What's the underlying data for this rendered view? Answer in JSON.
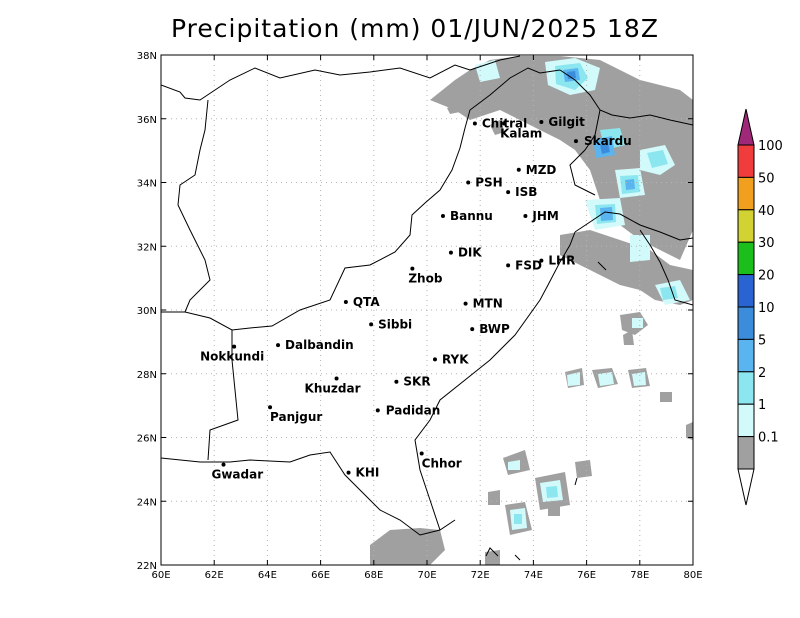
{
  "title": "Precipitation (mm) 01/JUN/2025 18Z",
  "map": {
    "lon_range": [
      60,
      80
    ],
    "lat_range": [
      22,
      38
    ],
    "grid": true,
    "x_ticks": [
      "60E",
      "62E",
      "64E",
      "66E",
      "68E",
      "70E",
      "72E",
      "74E",
      "76E",
      "78E",
      "80E"
    ],
    "y_ticks": [
      "22N",
      "24N",
      "26N",
      "28N",
      "30N",
      "32N",
      "34N",
      "36N",
      "38N"
    ]
  },
  "cities": [
    {
      "name": "Chitral",
      "lon": 71.8,
      "lat": 35.85
    },
    {
      "name": "Gilgit",
      "lon": 74.3,
      "lat": 35.9
    },
    {
      "name": "Kalam",
      "lon": 72.9,
      "lat": 35.85
    },
    {
      "name": "Skardu",
      "lon": 75.6,
      "lat": 35.3
    },
    {
      "name": "MZD",
      "lon": 73.45,
      "lat": 34.4
    },
    {
      "name": "PSH",
      "lon": 71.55,
      "lat": 34.0
    },
    {
      "name": "ISB",
      "lon": 73.05,
      "lat": 33.7
    },
    {
      "name": "JHM",
      "lon": 73.7,
      "lat": 32.95
    },
    {
      "name": "Bannu",
      "lon": 70.6,
      "lat": 32.95
    },
    {
      "name": "DIK",
      "lon": 70.9,
      "lat": 31.8
    },
    {
      "name": "FSD",
      "lon": 73.05,
      "lat": 31.4
    },
    {
      "name": "LHR",
      "lon": 74.3,
      "lat": 31.55
    },
    {
      "name": "Zhob",
      "lon": 69.45,
      "lat": 31.3
    },
    {
      "name": "QTA",
      "lon": 66.95,
      "lat": 30.25
    },
    {
      "name": "MTN",
      "lon": 71.45,
      "lat": 30.2
    },
    {
      "name": "Sibbi",
      "lon": 67.9,
      "lat": 29.55
    },
    {
      "name": "BWP",
      "lon": 71.7,
      "lat": 29.4
    },
    {
      "name": "Dalbandin",
      "lon": 64.4,
      "lat": 28.9
    },
    {
      "name": "Nokkundi",
      "lon": 62.75,
      "lat": 28.85
    },
    {
      "name": "RYK",
      "lon": 70.3,
      "lat": 28.45
    },
    {
      "name": "Khuzdar",
      "lon": 66.6,
      "lat": 27.85
    },
    {
      "name": "SKR",
      "lon": 68.85,
      "lat": 27.75
    },
    {
      "name": "Panjgur",
      "lon": 64.1,
      "lat": 26.95
    },
    {
      "name": "Padidan",
      "lon": 68.15,
      "lat": 26.85
    },
    {
      "name": "Chhor",
      "lon": 69.8,
      "lat": 25.5
    },
    {
      "name": "KHI",
      "lon": 67.05,
      "lat": 24.9
    },
    {
      "name": "Gwadar",
      "lon": 62.35,
      "lat": 25.15
    }
  ],
  "colorbar": {
    "levels": [
      {
        "label": "0.1",
        "color": "#a0a0a0"
      },
      {
        "label": "1",
        "color": "#d2fafa"
      },
      {
        "label": "2",
        "color": "#8ce6f0"
      },
      {
        "label": "5",
        "color": "#5ab4f0"
      },
      {
        "label": "10",
        "color": "#3c8cdc"
      },
      {
        "label": "20",
        "color": "#2a64d2"
      },
      {
        "label": "30",
        "color": "#1cbe1c"
      },
      {
        "label": "40",
        "color": "#d2d232"
      },
      {
        "label": "50",
        "color": "#f0a01e"
      },
      {
        "label": "100",
        "color": "#f03c3c"
      }
    ],
    "top_color": "#a02878"
  }
}
